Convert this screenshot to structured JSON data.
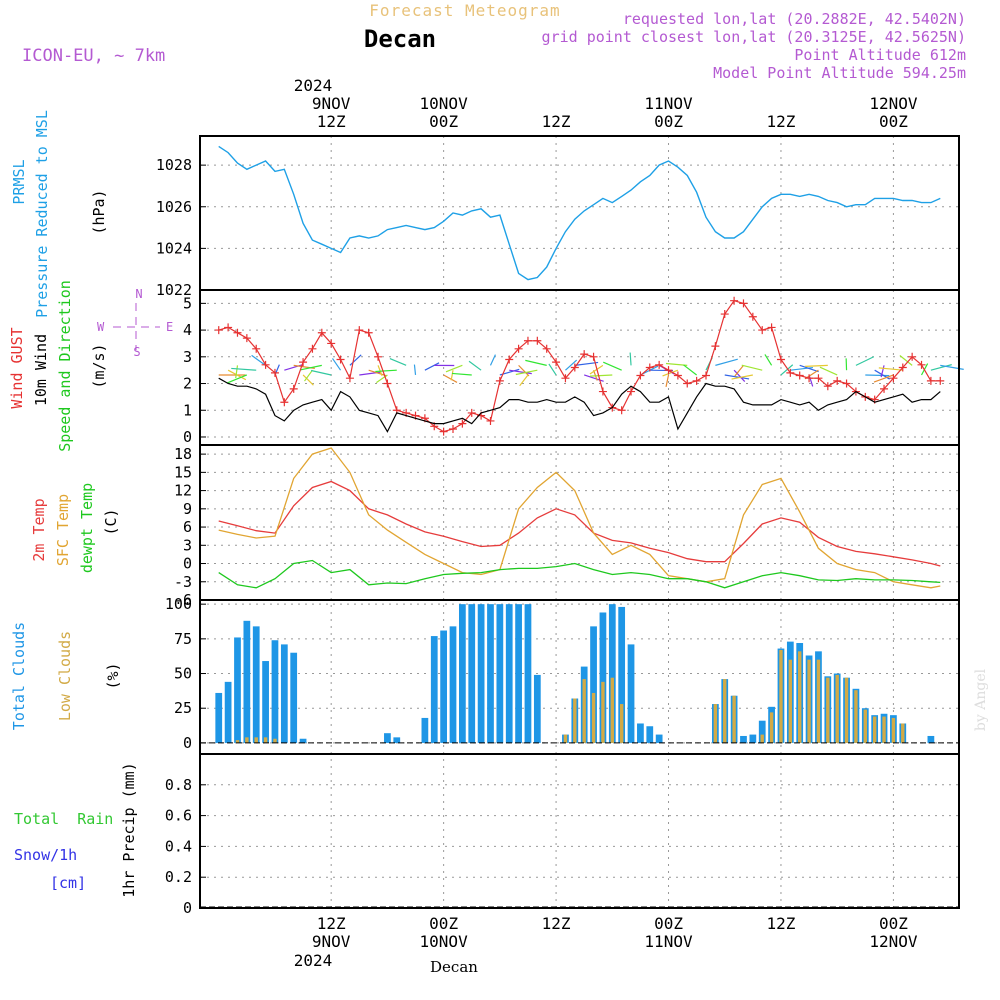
{
  "header": {
    "subtitle": "Forecast Meteogram",
    "location": "Decan",
    "model": "ICON-EU, ~ 7km",
    "requested": "requested lon,lat (20.2882E, 42.5402N)",
    "grid_point": "grid point closest lon,lat (20.3125E, 42.5625N)",
    "point_altitude": "Point Altitude 612m",
    "model_altitude": "Model Point Altitude 594.25m"
  },
  "time_axis": {
    "top_year": "2024",
    "bottom_year": "2024",
    "labels": [
      {
        "t": 12,
        "hour": "12Z",
        "date": "9NOV"
      },
      {
        "t": 24,
        "hour": "00Z",
        "date": "10NOV"
      },
      {
        "t": 36,
        "hour": "12Z",
        "date": ""
      },
      {
        "t": 48,
        "hour": "00Z",
        "date": "11NOV"
      },
      {
        "t": 60,
        "hour": "12Z",
        "date": ""
      },
      {
        "t": 72,
        "hour": "00Z",
        "date": "12NOV"
      }
    ],
    "footer_label": "Decan",
    "watermark": "by Angel"
  },
  "panel_labels": {
    "prmsl": "PRMSL",
    "prmsl_desc": "Pressure Reduced to MSL",
    "prmsl_unit": "(hPa)",
    "gust": "Wind GUST",
    "wind10": "10m Wind",
    "wind_speed_dir": "Speed and Direction",
    "wind_unit": "(m/s)",
    "compass_n": "N",
    "compass_s": "S",
    "compass_w": "W",
    "compass_e": "E",
    "temp2m": "2m Temp",
    "sfc_temp": "SFC Temp",
    "dewpt": "dewpt Temp",
    "temp_unit": "(C)",
    "total_clouds": "Total Clouds",
    "low_clouds": "Low Clouds",
    "cloud_unit": "(%)",
    "total_rain": "Total  Rain",
    "snow": "Snow/1h",
    "snow_unit": "[cm]",
    "precip": "1hr Precip (mm)"
  },
  "colors": {
    "pressure": "#1ea0e6",
    "gust": "#e63232",
    "wind10": "#000000",
    "temp2m": "#e63c3c",
    "sfc": "#e1a532",
    "dewpt": "#1ec81e",
    "total_clouds": "#1e96e6",
    "low_clouds": "#d2aa46",
    "rain": "#32c832",
    "snow": "#3232e6",
    "header_orange": "#e8c27a",
    "header_purple": "#b45ad2"
  },
  "chart_data": [
    {
      "type": "line",
      "title": "PRMSL - Pressure Reduced to MSL",
      "ylabel": "(hPa)",
      "ylim": [
        1022,
        1029.4
      ],
      "yticks": [
        1022,
        1024,
        1026,
        1028
      ],
      "x_range_hours": [
        -2,
        79
      ],
      "series": [
        {
          "name": "PRMSL",
          "x": [
            0,
            1,
            2,
            3,
            4,
            5,
            6,
            7,
            8,
            9,
            10,
            11,
            12,
            13,
            14,
            15,
            16,
            17,
            18,
            19,
            20,
            21,
            22,
            23,
            24,
            25,
            26,
            27,
            28,
            29,
            30,
            31,
            32,
            33,
            34,
            35,
            36,
            37,
            38,
            39,
            40,
            41,
            42,
            43,
            44,
            45,
            46,
            47,
            48,
            49,
            50,
            51,
            52,
            53,
            54,
            55,
            56,
            57,
            58,
            59,
            60,
            61,
            62,
            63,
            64,
            65,
            66,
            67,
            68,
            69,
            70,
            71,
            72,
            73,
            74,
            75,
            76,
            77
          ],
          "y": [
            1028.9,
            1028.6,
            1028.1,
            1027.8,
            1028.0,
            1028.2,
            1027.7,
            1027.8,
            1026.6,
            1025.2,
            1024.4,
            1024.2,
            1024.0,
            1023.8,
            1024.5,
            1024.6,
            1024.5,
            1024.6,
            1024.9,
            1025.0,
            1025.1,
            1025.0,
            1024.9,
            1025.0,
            1025.3,
            1025.7,
            1025.6,
            1025.8,
            1025.9,
            1025.5,
            1025.6,
            1024.2,
            1022.8,
            1022.5,
            1022.6,
            1023.1,
            1024.0,
            1024.8,
            1025.4,
            1025.8,
            1026.1,
            1026.4,
            1026.2,
            1026.5,
            1026.8,
            1027.2,
            1027.5,
            1028.0,
            1028.2,
            1027.9,
            1027.5,
            1026.7,
            1025.5,
            1024.8,
            1024.5,
            1024.5,
            1024.8,
            1025.4,
            1026.0,
            1026.4,
            1026.6,
            1026.6,
            1026.5,
            1026.6,
            1026.5,
            1026.3,
            1026.2,
            1026.0,
            1026.1,
            1026.1,
            1026.4,
            1026.4,
            1026.4,
            1026.3,
            1026.3,
            1026.2,
            1026.2,
            1026.4
          ]
        }
      ]
    },
    {
      "type": "line",
      "title": "Wind GUST / 10m Wind Speed and Direction",
      "ylabel": "(m/s)",
      "ylim": [
        -0.3,
        5.5
      ],
      "yticks": [
        0,
        1,
        2,
        3,
        4,
        5
      ],
      "series": [
        {
          "name": "Wind GUST",
          "x": [
            0,
            1,
            2,
            3,
            4,
            5,
            6,
            7,
            8,
            9,
            10,
            11,
            12,
            13,
            14,
            15,
            16,
            17,
            18,
            19,
            20,
            21,
            22,
            23,
            24,
            25,
            26,
            27,
            28,
            29,
            30,
            31,
            32,
            33,
            34,
            35,
            36,
            37,
            38,
            39,
            40,
            41,
            42,
            43,
            44,
            45,
            46,
            47,
            48,
            49,
            50,
            51,
            52,
            53,
            54,
            55,
            56,
            57,
            58,
            59,
            60,
            61,
            62,
            63,
            64,
            65,
            66,
            67,
            68,
            69,
            70,
            71,
            72,
            73,
            74,
            75,
            76,
            77
          ],
          "y": [
            4.0,
            4.1,
            3.9,
            3.7,
            3.3,
            2.7,
            2.4,
            1.3,
            1.8,
            2.8,
            3.3,
            3.9,
            3.5,
            2.9,
            2.2,
            4.0,
            3.9,
            3.0,
            2.0,
            1.0,
            0.9,
            0.8,
            0.7,
            0.4,
            0.2,
            0.3,
            0.5,
            0.9,
            0.8,
            0.6,
            2.1,
            2.9,
            3.3,
            3.6,
            3.6,
            3.3,
            2.8,
            2.2,
            2.6,
            3.1,
            3.0,
            1.7,
            1.1,
            1.0,
            1.7,
            2.3,
            2.6,
            2.7,
            2.5,
            2.3,
            2.0,
            2.1,
            2.3,
            3.4,
            4.6,
            5.1,
            5.0,
            4.5,
            4.0,
            4.1,
            2.9,
            2.4,
            2.3,
            2.2,
            2.2,
            1.9,
            2.1,
            2.0,
            1.7,
            1.5,
            1.4,
            1.8,
            2.2,
            2.6,
            3.0,
            2.7,
            2.1,
            2.1
          ]
        },
        {
          "name": "10m Wind",
          "x": [
            0,
            1,
            2,
            3,
            4,
            5,
            6,
            7,
            8,
            9,
            10,
            11,
            12,
            13,
            14,
            15,
            16,
            17,
            18,
            19,
            20,
            21,
            22,
            23,
            24,
            25,
            26,
            27,
            28,
            29,
            30,
            31,
            32,
            33,
            34,
            35,
            36,
            37,
            38,
            39,
            40,
            41,
            42,
            43,
            44,
            45,
            46,
            47,
            48,
            49,
            50,
            51,
            52,
            53,
            54,
            55,
            56,
            57,
            58,
            59,
            60,
            61,
            62,
            63,
            64,
            65,
            66,
            67,
            68,
            69,
            70,
            71,
            72,
            73,
            74,
            75,
            76,
            77
          ],
          "y": [
            2.2,
            2.0,
            1.9,
            1.9,
            1.8,
            1.6,
            0.8,
            0.6,
            1.0,
            1.2,
            1.3,
            1.4,
            1.0,
            1.7,
            1.5,
            1.0,
            0.9,
            0.8,
            0.2,
            0.9,
            0.8,
            0.7,
            0.6,
            0.5,
            0.5,
            0.6,
            0.7,
            0.5,
            0.9,
            1.0,
            1.1,
            1.4,
            1.4,
            1.3,
            1.3,
            1.4,
            1.3,
            1.3,
            1.5,
            1.3,
            0.8,
            0.9,
            1.1,
            1.6,
            1.9,
            1.7,
            1.3,
            1.3,
            1.5,
            0.3,
            0.9,
            1.5,
            2.0,
            1.9,
            1.9,
            1.8,
            1.3,
            1.2,
            1.2,
            1.2,
            1.4,
            1.3,
            1.2,
            1.3,
            1.0,
            1.2,
            1.3,
            1.4,
            1.7,
            1.5,
            1.3,
            1.4,
            1.5,
            1.6,
            1.3,
            1.4,
            1.4,
            1.7
          ]
        }
      ]
    },
    {
      "type": "line",
      "title": "2m Temp / SFC Temp / dewpt Temp",
      "ylabel": "(C)",
      "ylim": [
        -6,
        19.5
      ],
      "yticks": [
        -6,
        -3,
        0,
        3,
        6,
        9,
        12,
        15,
        18
      ],
      "series": [
        {
          "name": "2m Temp",
          "x": [
            0,
            2,
            4,
            6,
            8,
            10,
            12,
            14,
            16,
            18,
            20,
            22,
            24,
            26,
            28,
            30,
            32,
            34,
            36,
            38,
            40,
            42,
            44,
            46,
            48,
            50,
            52,
            54,
            56,
            58,
            60,
            62,
            64,
            66,
            68,
            70,
            72,
            74,
            76,
            77
          ],
          "y": [
            7,
            6.2,
            5.4,
            5,
            9.5,
            12.5,
            13.5,
            12,
            9,
            8,
            6.5,
            5.2,
            4.5,
            3.6,
            2.8,
            3,
            5,
            7.5,
            9,
            8,
            5,
            3.8,
            3.4,
            2.5,
            1.8,
            0.8,
            0.3,
            0.3,
            3.3,
            6.5,
            7.5,
            6.8,
            4.3,
            2.8,
            2,
            1.6,
            1.1,
            0.6,
            0,
            -0.4
          ]
        },
        {
          "name": "SFC Temp",
          "x": [
            0,
            2,
            4,
            6,
            8,
            10,
            12,
            14,
            16,
            18,
            20,
            22,
            24,
            26,
            28,
            30,
            32,
            34,
            36,
            38,
            40,
            42,
            44,
            46,
            48,
            50,
            52,
            54,
            56,
            58,
            60,
            62,
            64,
            66,
            68,
            70,
            72,
            74,
            76,
            77
          ],
          "y": [
            5.5,
            4.8,
            4.2,
            4.5,
            14,
            18,
            19,
            15,
            8,
            5.5,
            3.5,
            1.5,
            0,
            -1.5,
            -1.8,
            -1,
            9,
            12.5,
            15,
            12,
            5,
            1.5,
            3,
            1.5,
            -2,
            -2.5,
            -3,
            -2.5,
            8,
            13,
            14,
            8.5,
            2.5,
            0,
            -1,
            -1.5,
            -3,
            -3.5,
            -4,
            -3.7
          ]
        },
        {
          "name": "dewpt Temp",
          "x": [
            0,
            2,
            4,
            6,
            8,
            10,
            12,
            14,
            16,
            18,
            20,
            22,
            24,
            26,
            28,
            30,
            32,
            34,
            36,
            38,
            40,
            42,
            44,
            46,
            48,
            50,
            52,
            54,
            56,
            58,
            60,
            62,
            64,
            66,
            68,
            70,
            72,
            74,
            76,
            77
          ],
          "y": [
            -1.5,
            -3.5,
            -4,
            -2.5,
            0,
            0.5,
            -1.5,
            -1,
            -3.5,
            -3.2,
            -3.3,
            -2.5,
            -1.8,
            -1.6,
            -1.5,
            -1,
            -0.8,
            -0.8,
            -0.5,
            0,
            -1,
            -1.8,
            -1.5,
            -1.8,
            -2.5,
            -2.5,
            -3,
            -4,
            -3,
            -2,
            -1.5,
            -2,
            -2.7,
            -2.8,
            -2.5,
            -2.7,
            -2.7,
            -2.8,
            -3,
            -3.1
          ]
        }
      ]
    },
    {
      "type": "bar",
      "title": "Total Clouds / Low Clouds",
      "ylabel": "(%)",
      "ylim": [
        -8,
        103
      ],
      "yticks": [
        0,
        25,
        50,
        75,
        100
      ],
      "x": [
        0,
        1,
        2,
        3,
        4,
        5,
        6,
        7,
        8,
        9,
        10,
        11,
        12,
        13,
        14,
        15,
        16,
        17,
        18,
        19,
        20,
        21,
        22,
        23,
        24,
        25,
        26,
        27,
        28,
        29,
        30,
        31,
        32,
        33,
        34,
        35,
        36,
        37,
        38,
        39,
        40,
        41,
        42,
        43,
        44,
        45,
        46,
        47,
        48,
        49,
        50,
        51,
        52,
        53,
        54,
        55,
        56,
        57,
        58,
        59,
        60,
        61,
        62,
        63,
        64,
        65,
        66,
        67,
        68,
        69,
        70,
        71,
        72,
        73,
        74,
        75,
        76,
        77
      ],
      "series": [
        {
          "name": "Total Clouds",
          "values": [
            36,
            44,
            76,
            88,
            84,
            59,
            74,
            71,
            65,
            3,
            0,
            0,
            0,
            0,
            0,
            0,
            0,
            0,
            7,
            4,
            0,
            0,
            18,
            77,
            81,
            84,
            100,
            100,
            100,
            100,
            100,
            100,
            100,
            100,
            49,
            0,
            0,
            6,
            32,
            55,
            84,
            94,
            100,
            98,
            71,
            14,
            12,
            6,
            0,
            0,
            0,
            0,
            0,
            28,
            46,
            34,
            5,
            6,
            16,
            26,
            68,
            73,
            72,
            63,
            66,
            48,
            50,
            47,
            39,
            25,
            20,
            21,
            20,
            14,
            0,
            0,
            5,
            0
          ]
        },
        {
          "name": "Low Clouds",
          "values": [
            0,
            0,
            2,
            4,
            4,
            4,
            3,
            0,
            0,
            0,
            0,
            0,
            0,
            0,
            0,
            0,
            0,
            0,
            0,
            0,
            0,
            0,
            0,
            0,
            0,
            0,
            0,
            0,
            0,
            0,
            0,
            0,
            0,
            0,
            0,
            0,
            0,
            6,
            32,
            46,
            36,
            44,
            47,
            28,
            0,
            0,
            0,
            0,
            0,
            0,
            0,
            0,
            0,
            28,
            46,
            34,
            0,
            0,
            6,
            22,
            67,
            60,
            66,
            60,
            60,
            47,
            49,
            47,
            38,
            24,
            19,
            19,
            18,
            14,
            0,
            0,
            0,
            0
          ]
        }
      ]
    },
    {
      "type": "bar",
      "title": "Total Rain / Snow 1hr Precip",
      "ylabel": "1hr Precip (mm)",
      "ylim": [
        0,
        1
      ],
      "yticks": [
        0,
        0.2,
        0.4,
        0.6,
        0.8
      ],
      "series": [
        {
          "name": "Total Rain",
          "values": []
        },
        {
          "name": "Snow/1h",
          "values": []
        }
      ]
    }
  ]
}
